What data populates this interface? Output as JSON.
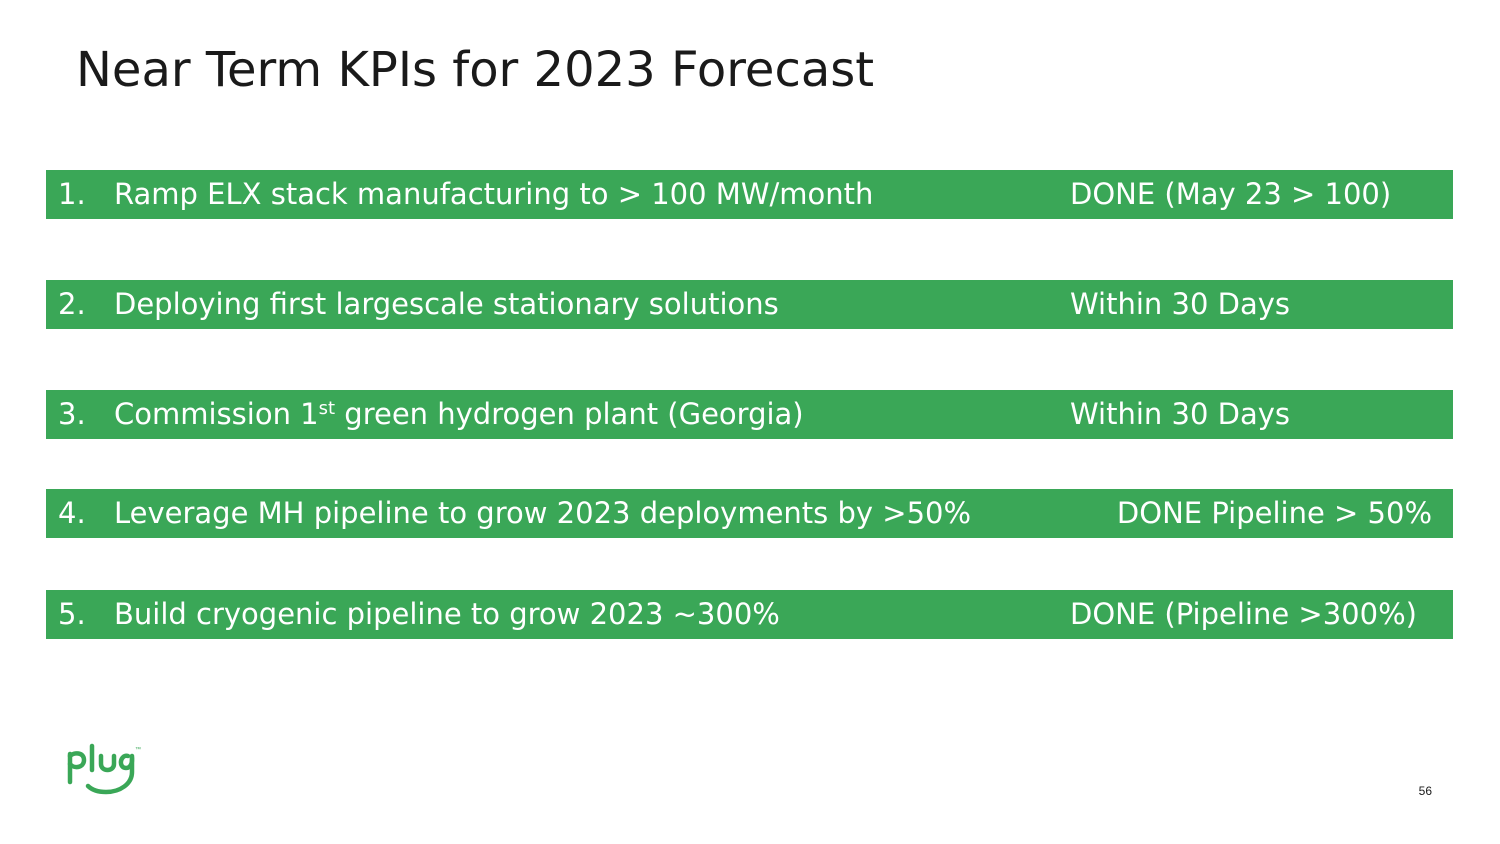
{
  "slide": {
    "title": "Near Term KPIs for 2023 Forecast",
    "page_number": "56",
    "accent_color": "#3aa757",
    "logo": {
      "text": "plug",
      "tm": "™"
    }
  },
  "kpis": [
    {
      "number": "1.",
      "text": "Ramp ELX stack manufacturing to > 100 MW/month",
      "status": "DONE (May 23 > 100)"
    },
    {
      "number": "2.",
      "text": "Deploying first largescale stationary solutions",
      "status": "Within 30 Days"
    },
    {
      "number": "3.",
      "text_before": "Commission 1",
      "text_sup": "st",
      "text_after": " green hydrogen plant (Georgia)",
      "status": "Within 30 Days"
    },
    {
      "number": "4.",
      "text": "Leverage MH pipeline to grow 2023 deployments by >50%",
      "status": "DONE Pipeline > 50%"
    },
    {
      "number": "5.",
      "text": "Build cryogenic pipeline to grow 2023 ~300%",
      "status": "DONE (Pipeline >300%)"
    }
  ]
}
